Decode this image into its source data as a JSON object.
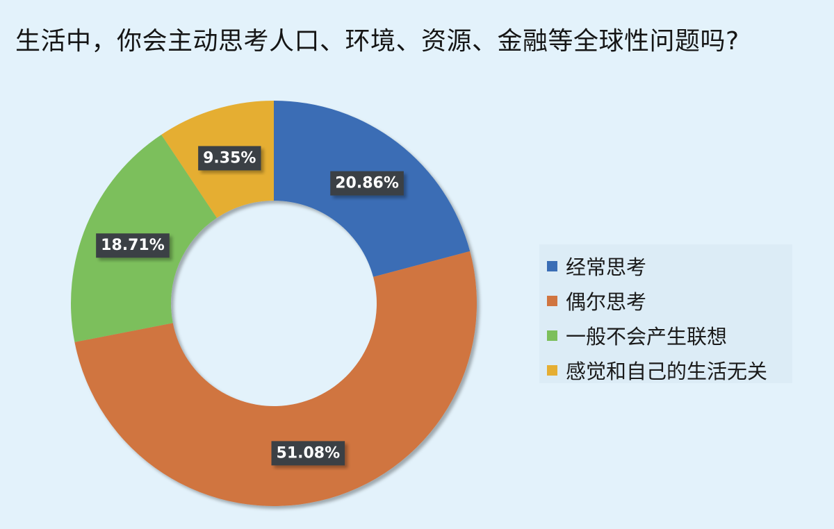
{
  "title": "生活中，你会主动思考人口、环境、资源、金融等全球性问题吗?",
  "chart_data": {
    "type": "pie",
    "title": "生活中，你会主动思考人口、环境、资源、金融等全球性问题吗?",
    "donut": true,
    "legend_position": "right",
    "categories": [
      "经常思考",
      "偶尔思考",
      "一般不会产生联想",
      "感觉和自己的生活无关"
    ],
    "values": [
      20.86,
      51.08,
      18.71,
      9.35
    ],
    "labels": [
      "20.86%",
      "51.08%",
      "18.71%",
      "9.35%"
    ],
    "colors": [
      "#3a6db5",
      "#d07540",
      "#7cbf5b",
      "#e5ae33"
    ]
  }
}
